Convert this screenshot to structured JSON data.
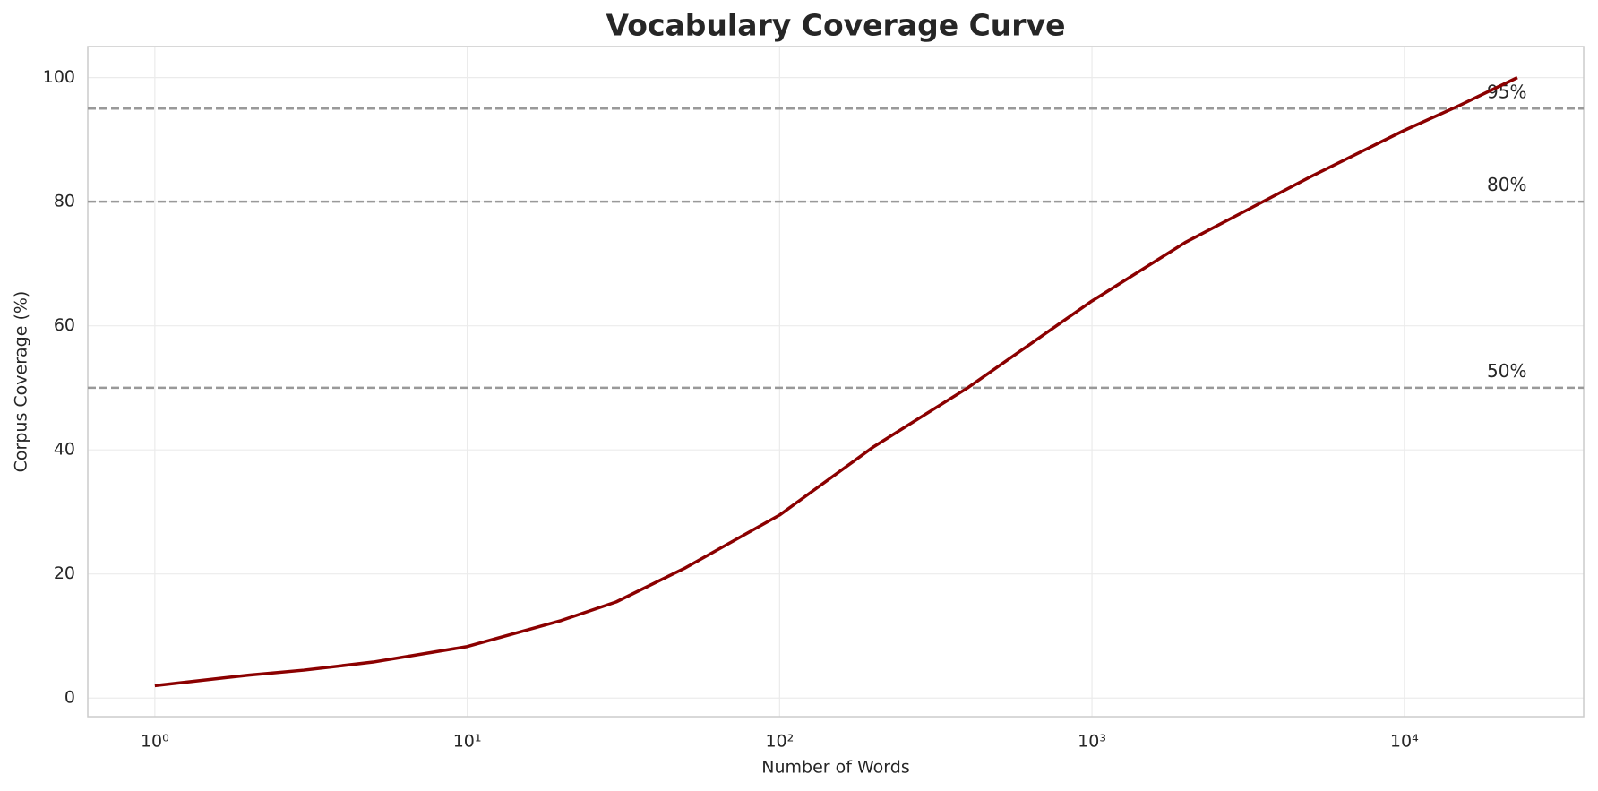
{
  "chart_data": {
    "type": "line",
    "title": "Vocabulary Coverage Curve",
    "x_label": "Number of Words",
    "y_label": "Corpus Coverage (%)",
    "x_scale": "log",
    "grid": true,
    "x": [
      1,
      2,
      3,
      5,
      10,
      20,
      30,
      50,
      100,
      200,
      400,
      1000,
      2000,
      5000,
      10000,
      15000,
      23000
    ],
    "series": [
      {
        "name": "Coverage",
        "color": "#8b0000",
        "values": [
          2,
          3.7,
          4.5,
          5.8,
          8.3,
          12.5,
          15.5,
          21,
          29.5,
          40.5,
          50,
          64,
          73.5,
          84,
          91.5,
          95.5,
          100
        ]
      }
    ],
    "xlim": [
      0.61,
      37500
    ],
    "xticks": [
      {
        "value": 1,
        "label": "10⁰"
      },
      {
        "value": 10,
        "label": "10¹"
      },
      {
        "value": 100,
        "label": "10²"
      },
      {
        "value": 1000,
        "label": "10³"
      },
      {
        "value": 10000,
        "label": "10⁴"
      }
    ],
    "ylim": [
      -3,
      105
    ],
    "yticks": [
      0,
      20,
      40,
      60,
      80,
      100
    ],
    "hlines": [
      {
        "value": 50,
        "label": "50%",
        "color": "#999999"
      },
      {
        "value": 80,
        "label": "80%",
        "color": "#999999"
      },
      {
        "value": 95,
        "label": "95%",
        "color": "#999999"
      }
    ]
  }
}
